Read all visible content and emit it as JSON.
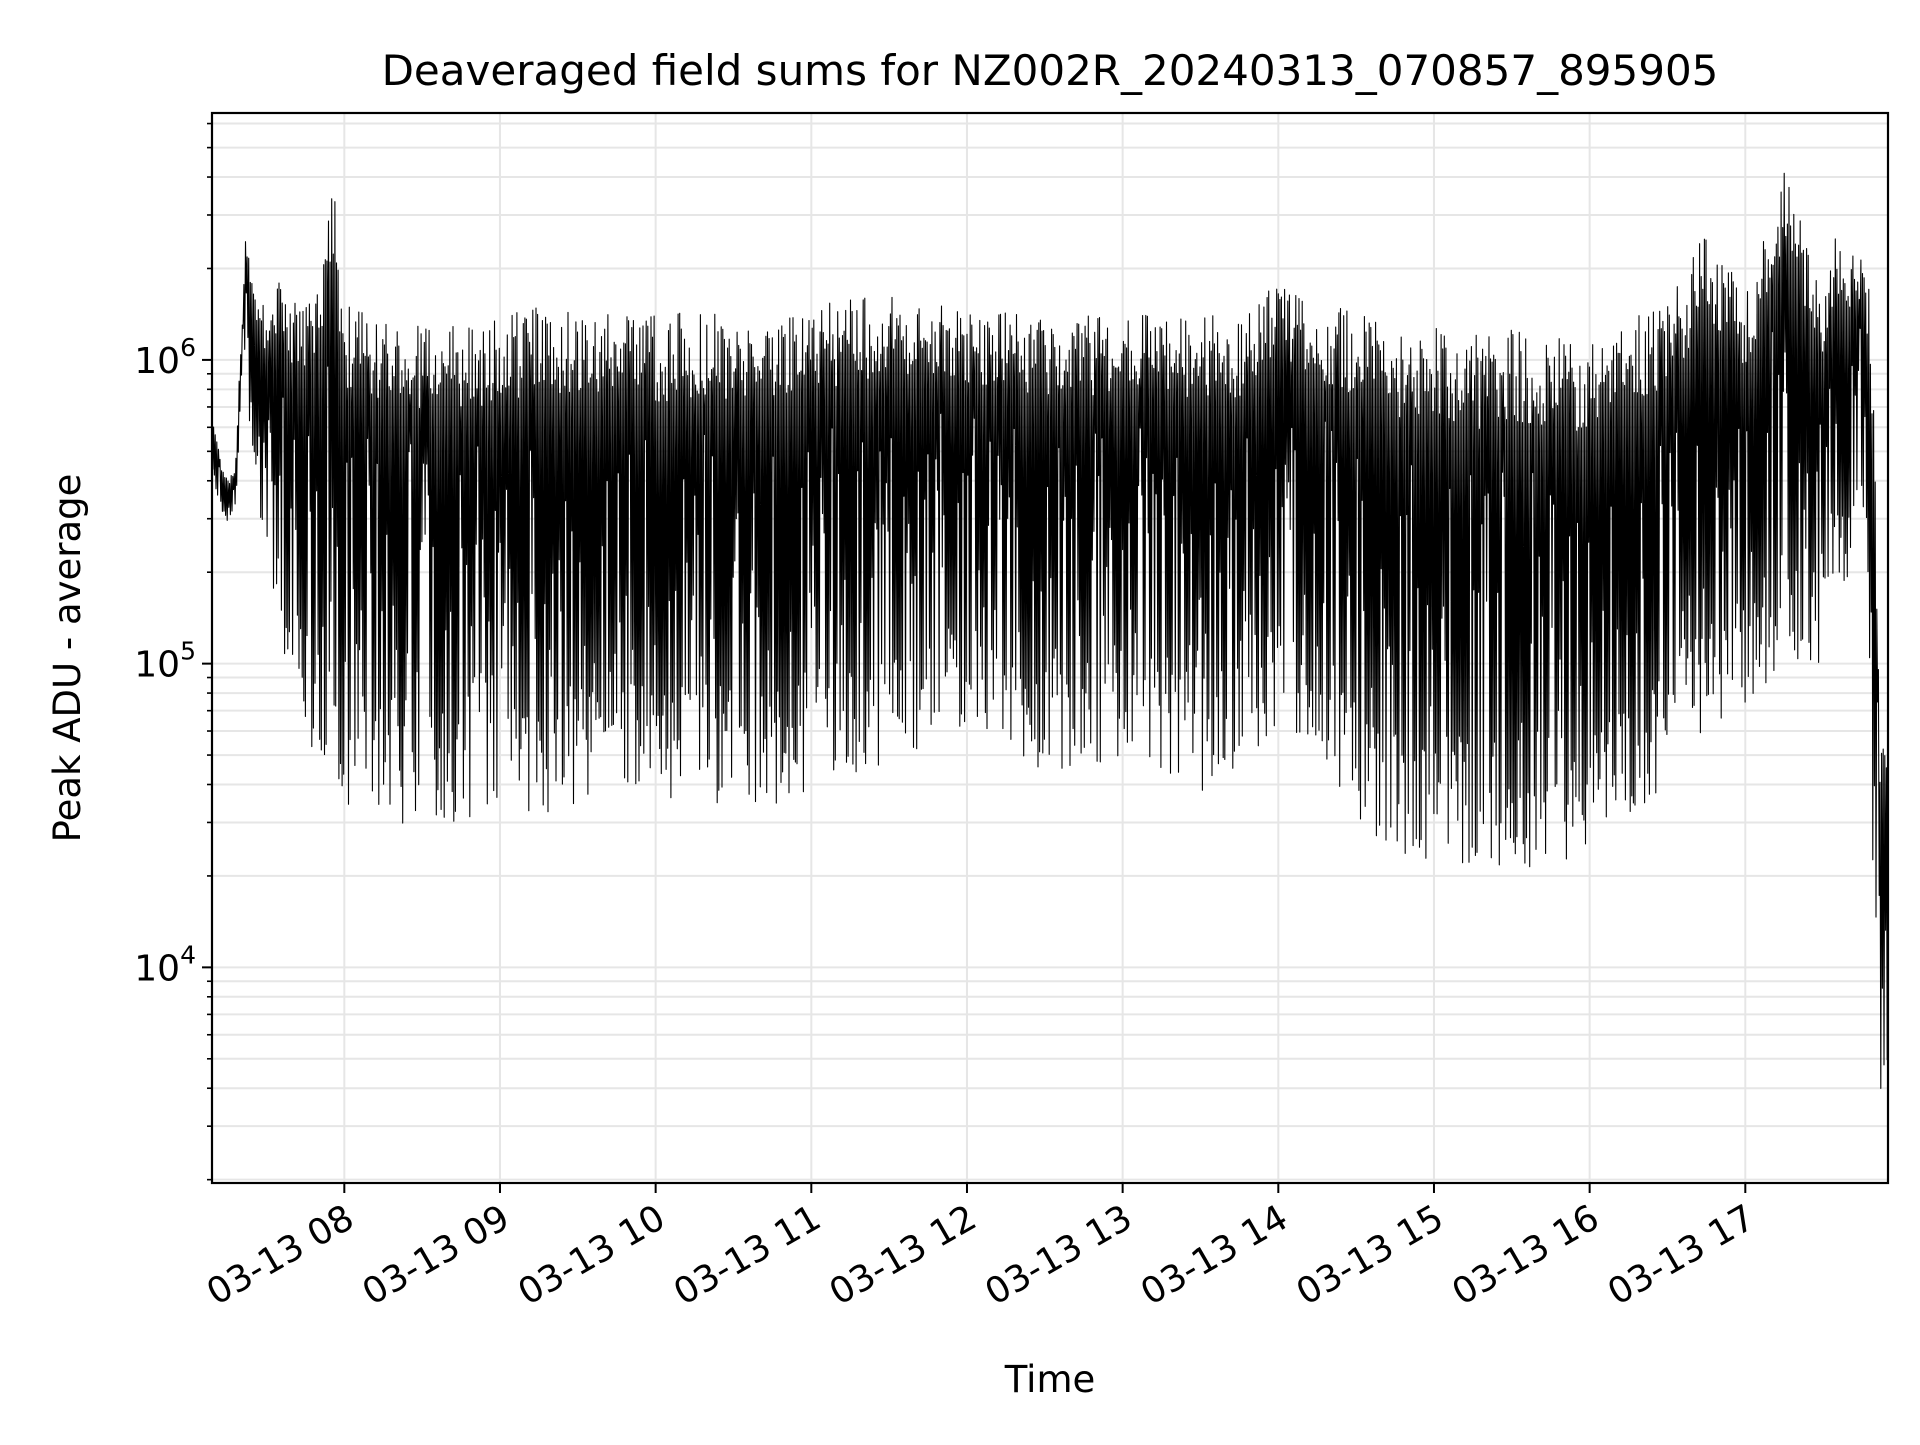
{
  "chart_data": {
    "type": "line",
    "title": "Deaveraged field sums for NZ002R_20240313_070857_895905",
    "xlabel": "Time",
    "ylabel": "Peak ADU - average",
    "yscale": "log",
    "ylim": [
      1950,
      6500000
    ],
    "xlim": [
      "2024-03-13 07:09",
      "2024-03-13 17:55"
    ],
    "grid": true,
    "line_color": "#000000",
    "grid_color": "#e6e6e6",
    "x_ticks": [
      {
        "value": "2024-03-13 08:00",
        "label": "03-13 08"
      },
      {
        "value": "2024-03-13 09:00",
        "label": "03-13 09"
      },
      {
        "value": "2024-03-13 10:00",
        "label": "03-13 10"
      },
      {
        "value": "2024-03-13 11:00",
        "label": "03-13 11"
      },
      {
        "value": "2024-03-13 12:00",
        "label": "03-13 12"
      },
      {
        "value": "2024-03-13 13:00",
        "label": "03-13 13"
      },
      {
        "value": "2024-03-13 14:00",
        "label": "03-13 14"
      },
      {
        "value": "2024-03-13 15:00",
        "label": "03-13 15"
      },
      {
        "value": "2024-03-13 16:00",
        "label": "03-13 16"
      },
      {
        "value": "2024-03-13 17:00",
        "label": "03-13 17"
      }
    ],
    "y_ticks": [
      {
        "value": 10000,
        "base": "10",
        "exp": "4"
      },
      {
        "value": 100000,
        "base": "10",
        "exp": "5"
      },
      {
        "value": 1000000,
        "base": "10",
        "exp": "6"
      }
    ],
    "series": [
      {
        "x": [
          "2024-03-13 07:09",
          "2024-03-13 07:12",
          "2024-03-13 07:15",
          "2024-03-13 07:18",
          "2024-03-13 07:20",
          "2024-03-13 07:22",
          "2024-03-13 07:25",
          "2024-03-13 07:30",
          "2024-03-13 07:35",
          "2024-03-13 07:40",
          "2024-03-13 07:45",
          "2024-03-13 07:50",
          "2024-03-13 07:55",
          "2024-03-13 08:00",
          "2024-03-13 08:15",
          "2024-03-13 08:30",
          "2024-03-13 08:45",
          "2024-03-13 09:00",
          "2024-03-13 09:15",
          "2024-03-13 09:30",
          "2024-03-13 09:45",
          "2024-03-13 10:00",
          "2024-03-13 10:15",
          "2024-03-13 10:30",
          "2024-03-13 10:45",
          "2024-03-13 11:00",
          "2024-03-13 11:15",
          "2024-03-13 11:30",
          "2024-03-13 11:45",
          "2024-03-13 12:00",
          "2024-03-13 12:15",
          "2024-03-13 12:30",
          "2024-03-13 12:45",
          "2024-03-13 13:00",
          "2024-03-13 13:15",
          "2024-03-13 13:30",
          "2024-03-13 13:45",
          "2024-03-13 14:00",
          "2024-03-13 14:15",
          "2024-03-13 14:30",
          "2024-03-13 14:45",
          "2024-03-13 15:00",
          "2024-03-13 15:15",
          "2024-03-13 15:30",
          "2024-03-13 15:45",
          "2024-03-13 16:00",
          "2024-03-13 16:15",
          "2024-03-13 16:30",
          "2024-03-13 16:45",
          "2024-03-13 17:00",
          "2024-03-13 17:15",
          "2024-03-13 17:30",
          "2024-03-13 17:35",
          "2024-03-13 17:40",
          "2024-03-13 17:45",
          "2024-03-13 17:48",
          "2024-03-13 17:50",
          "2024-03-13 17:52",
          "2024-03-13 17:55"
        ],
        "upper": [
          700000,
          480000,
          400000,
          450000,
          1100000,
          2600000,
          1700000,
          1500000,
          1900000,
          1600000,
          1500000,
          1700000,
          4700000,
          1600000,
          1500000,
          1400000,
          1300000,
          1450000,
          1500000,
          1450000,
          1400000,
          1400000,
          1500000,
          1400000,
          1550000,
          1500000,
          1600000,
          1650000,
          1600000,
          1500000,
          1450000,
          1400000,
          1400000,
          1400000,
          1450000,
          1400000,
          1400000,
          1800000,
          1550000,
          1500000,
          1250000,
          1300000,
          1200000,
          1300000,
          1200000,
          1150000,
          1400000,
          1500000,
          2800000,
          1600000,
          4400000,
          1600000,
          2800000,
          2300000,
          2200000,
          2000000,
          550000,
          60000,
          50000
        ],
        "lower": [
          400000,
          330000,
          290000,
          300000,
          650000,
          700000,
          400000,
          200000,
          120000,
          90000,
          60000,
          45000,
          50000,
          30000,
          28000,
          27000,
          30000,
          35000,
          29000,
          33000,
          40000,
          35000,
          32000,
          36000,
          30000,
          40000,
          40000,
          45000,
          55000,
          60000,
          55000,
          42000,
          45000,
          50000,
          45000,
          38000,
          42000,
          60000,
          55000,
          30000,
          24000,
          22000,
          21000,
          20000,
          22000,
          23000,
          30000,
          40000,
          55000,
          70000,
          90000,
          100000,
          150000,
          200000,
          300000,
          60000,
          10000,
          3000,
          2800
        ]
      }
    ]
  }
}
